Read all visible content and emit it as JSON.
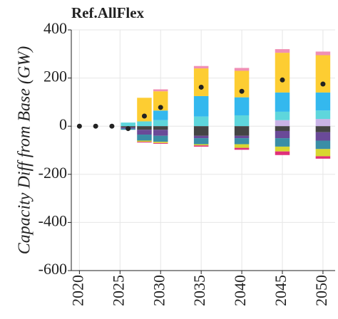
{
  "chart_data": {
    "type": "bar",
    "stacked": true,
    "title": "Ref.AllFlex",
    "y_label": "Capacity Diff from Base (GW)",
    "x": [
      2020,
      2022,
      2024,
      2026,
      2028,
      2030,
      2035,
      2040,
      2045,
      2050
    ],
    "xlim": [
      2019,
      2051.5
    ],
    "xticks": [
      2020,
      2025,
      2030,
      2035,
      2040,
      2045,
      2050
    ],
    "ylim": [
      -600,
      400
    ],
    "yticks": [
      -600,
      -400,
      -200,
      0,
      200,
      400
    ],
    "grid": true,
    "series": [
      {
        "color": "#c9b3e6",
        "values": [
          null,
          null,
          null,
          0,
          0,
          0,
          0,
          0,
          25,
          30
        ]
      },
      {
        "color": "#5ed6dc",
        "values": [
          null,
          null,
          null,
          15,
          20,
          25,
          40,
          45,
          35,
          35
        ]
      },
      {
        "color": "#34b8ee",
        "values": [
          null,
          null,
          null,
          0,
          0,
          40,
          85,
          75,
          80,
          75
        ]
      },
      {
        "color": "#fdcd32",
        "values": [
          null,
          null,
          null,
          0,
          98,
          80,
          115,
          110,
          165,
          155
        ]
      },
      {
        "color": "#f08fb4",
        "values": [
          null,
          null,
          null,
          0,
          0,
          8,
          10,
          12,
          15,
          15
        ]
      },
      {
        "color": "#444444",
        "values": [
          null,
          null,
          null,
          -5,
          -15,
          -15,
          -40,
          -40,
          -20,
          -25
        ]
      },
      {
        "color": "#6a4a98",
        "values": [
          null,
          null,
          null,
          -5,
          -20,
          -25,
          -10,
          -10,
          -30,
          -35
        ]
      },
      {
        "color": "#3a8ea6",
        "values": [
          null,
          null,
          null,
          -5,
          -25,
          -25,
          -25,
          -25,
          -35,
          -35
        ]
      },
      {
        "color": "#d8d630",
        "values": [
          null,
          null,
          null,
          0,
          -5,
          -5,
          -5,
          -15,
          -20,
          -30
        ]
      },
      {
        "color": "#e0307a",
        "values": [
          null,
          null,
          null,
          0,
          -3,
          -3,
          -5,
          -8,
          -15,
          -10
        ]
      }
    ],
    "net": {
      "color": "#222222",
      "values": [
        0,
        0,
        0,
        -10,
        42,
        78,
        162,
        145,
        192,
        175
      ]
    }
  }
}
